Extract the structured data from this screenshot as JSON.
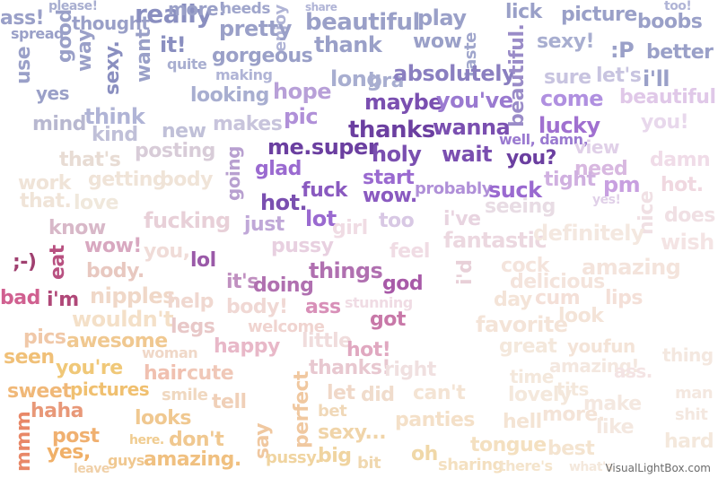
{
  "cloud": {
    "colors": {
      "top": "#8e94bd",
      "middle": "#8a50c0",
      "light": "#f2d9d2",
      "bottom": "#f0c060",
      "dark_purple": "#6b3fa0",
      "pink": "#d89ac8"
    },
    "words": [
      {
        "text": "ass!",
        "color": "#9aa0c8"
      },
      {
        "text": "please!",
        "color": "#a8aed0"
      },
      {
        "text": "thought",
        "color": "#9aa0c8"
      },
      {
        "text": "really",
        "color": "#8a8fc0"
      },
      {
        "text": "more!",
        "color": "#9aa0c8"
      },
      {
        "text": "needs",
        "color": "#a0a6cc"
      },
      {
        "text": "share",
        "color": "#b0b4d6"
      },
      {
        "text": "beautiful",
        "color": "#9aa0c8"
      },
      {
        "text": "play",
        "color": "#9aa0c8"
      },
      {
        "text": "lick",
        "color": "#9aa0c8"
      },
      {
        "text": "picture",
        "color": "#9aa0c8"
      },
      {
        "text": "boobs",
        "color": "#9aa0c8"
      },
      {
        "text": "too!",
        "color": "#b0b4d6"
      },
      {
        "text": "spread",
        "color": "#9aa0c8"
      },
      {
        "text": "good",
        "color": "#9aa0c8"
      },
      {
        "text": "way",
        "color": "#9aa0c8"
      },
      {
        "text": "sexy.",
        "color": "#8a8fc0"
      },
      {
        "text": "want",
        "color": "#9aa0c8"
      },
      {
        "text": "it!",
        "color": "#8a8fc0"
      },
      {
        "text": "gorgeous",
        "color": "#9aa0c8"
      },
      {
        "text": "enjoy",
        "color": "#b0b4d6"
      },
      {
        "text": "thank",
        "color": "#9aa0c8"
      },
      {
        "text": "wow",
        "color": "#9aa0c8"
      },
      {
        "text": "taste",
        "color": "#a0a6cc"
      },
      {
        "text": "sexy!",
        "color": "#a8aed0"
      },
      {
        "text": ":P",
        "color": "#9aa0c8"
      },
      {
        "text": "better",
        "color": "#9aa0c8"
      },
      {
        "text": "use",
        "color": "#9aa0c8"
      },
      {
        "text": "pretty",
        "color": "#9aa0c8"
      },
      {
        "text": "quite",
        "color": "#a8aed0"
      },
      {
        "text": "long",
        "color": "#a8aed0"
      },
      {
        "text": "bra",
        "color": "#a8aed0"
      },
      {
        "text": "absolutely",
        "color": "#8a7fc0"
      },
      {
        "text": "beautiful.",
        "color": "#9a8cc8"
      },
      {
        "text": "sure",
        "color": "#c8c4e0"
      },
      {
        "text": "let's",
        "color": "#c8c4e0"
      },
      {
        "text": "i'll",
        "color": "#9aa0c8"
      },
      {
        "text": "yes",
        "color": "#9aa0c8"
      },
      {
        "text": "making",
        "color": "#b0b4d6"
      },
      {
        "text": "looking",
        "color": "#a8aed0"
      },
      {
        "text": "hope",
        "color": "#b8a0d8"
      },
      {
        "text": "maybe",
        "color": "#7a4fb0"
      },
      {
        "text": "you've",
        "color": "#9a7ad0"
      },
      {
        "text": "come",
        "color": "#b090e0"
      },
      {
        "text": "beautiful!",
        "color": "#e0c8e8"
      },
      {
        "text": "think",
        "color": "#b0b4d6"
      },
      {
        "text": "mind",
        "color": "#b8b8d0"
      },
      {
        "text": "kind",
        "color": "#c0c0d8"
      },
      {
        "text": "new",
        "color": "#c0c0d8"
      },
      {
        "text": "makes",
        "color": "#c8c4dc"
      },
      {
        "text": "pic",
        "color": "#b090d8"
      },
      {
        "text": "thanks",
        "color": "#6b3fa0"
      },
      {
        "text": "wanna",
        "color": "#7a4fb0"
      },
      {
        "text": "lucky",
        "color": "#a070d0"
      },
      {
        "text": "you!",
        "color": "#e8d8ec"
      },
      {
        "text": "posting",
        "color": "#d8ccd8"
      },
      {
        "text": "me.super",
        "color": "#6b3fa0"
      },
      {
        "text": "holy",
        "color": "#7a4fb0"
      },
      {
        "text": "wait",
        "color": "#7a4fb0"
      },
      {
        "text": "well, damn,",
        "color": "#9a7ad0"
      },
      {
        "text": "view",
        "color": "#e0d0e8"
      },
      {
        "text": "glad",
        "color": "#9a6ad0"
      },
      {
        "text": "you?",
        "color": "#6b3fa0"
      },
      {
        "text": "need",
        "color": "#d8b8e0"
      },
      {
        "text": "damn",
        "color": "#f0dce8"
      },
      {
        "text": "that's",
        "color": "#e8dcd4"
      },
      {
        "text": "work",
        "color": "#f0e4d8"
      },
      {
        "text": "getting",
        "color": "#f0e4d8"
      },
      {
        "text": "body",
        "color": "#f0e4d8"
      },
      {
        "text": "going",
        "color": "#b8a0d0"
      },
      {
        "text": "hot.",
        "color": "#7a4fb0"
      },
      {
        "text": "fuck",
        "color": "#8a5ac0"
      },
      {
        "text": "start",
        "color": "#9a6ad0"
      },
      {
        "text": "wow.",
        "color": "#8a5ac0"
      },
      {
        "text": "probably",
        "color": "#b090d8"
      },
      {
        "text": "suck",
        "color": "#9a6ad0"
      },
      {
        "text": "tight",
        "color": "#d0b0e0"
      },
      {
        "text": "pm",
        "color": "#c8a0e0"
      },
      {
        "text": "hot.",
        "color": "#f0d8e0"
      },
      {
        "text": "that.",
        "color": "#f0e4d8"
      },
      {
        "text": "love",
        "color": "#f0e8dc"
      },
      {
        "text": "lot",
        "color": "#9a6ad0"
      },
      {
        "text": "just",
        "color": "#c0a8d8"
      },
      {
        "text": "too",
        "color": "#d8c8e4"
      },
      {
        "text": "i've",
        "color": "#e8d4e0"
      },
      {
        "text": "seeing",
        "color": "#e8dce4"
      },
      {
        "text": "yes!",
        "color": "#e0d0e8"
      },
      {
        "text": "nice",
        "color": "#f0e0e4"
      },
      {
        "text": "does",
        "color": "#f0e0e4"
      },
      {
        "text": "know",
        "color": "#d8b8c8"
      },
      {
        "text": "fucking",
        "color": "#e8d0d8"
      },
      {
        "text": "girl",
        "color": "#f0dce4"
      },
      {
        "text": "fantastic",
        "color": "#ecd8e0"
      },
      {
        "text": "definitely",
        "color": "#f4e8e0"
      },
      {
        "text": "wish",
        "color": "#f4e4e4"
      },
      {
        "text": "wow!",
        "color": "#d8a8c0"
      },
      {
        "text": "pussy",
        "color": "#e8d0e0"
      },
      {
        "text": "feel",
        "color": "#f0dce4"
      },
      {
        "text": "eat",
        "color": "#b85080"
      },
      {
        "text": ";-)",
        "color": "#a04070"
      },
      {
        "text": "you,",
        "color": "#f0dcd8"
      },
      {
        "text": "lol",
        "color": "#9a5aa8"
      },
      {
        "text": "things",
        "color": "#b070b0"
      },
      {
        "text": "i'd",
        "color": "#e8d0d8"
      },
      {
        "text": "cock",
        "color": "#f4e4dc"
      },
      {
        "text": "amazing",
        "color": "#f4e4dc"
      },
      {
        "text": "body.",
        "color": "#e8c8c0"
      },
      {
        "text": "it's",
        "color": "#c090c0"
      },
      {
        "text": "doing",
        "color": "#b070b0"
      },
      {
        "text": "god",
        "color": "#a85aa8"
      },
      {
        "text": "delicious",
        "color": "#f4e4dc"
      },
      {
        "text": "bad",
        "color": "#d06090"
      },
      {
        "text": "i'm",
        "color": "#b04878"
      },
      {
        "text": "nipples",
        "color": "#f0d8c8"
      },
      {
        "text": "help",
        "color": "#f0d8d0"
      },
      {
        "text": "body!",
        "color": "#f0d8d4"
      },
      {
        "text": "ass",
        "color": "#d890b8"
      },
      {
        "text": "stunning",
        "color": "#f0dce4"
      },
      {
        "text": "day",
        "color": "#f4e4d8"
      },
      {
        "text": "cum",
        "color": "#f4e0d8"
      },
      {
        "text": "lips",
        "color": "#f4e0d8"
      },
      {
        "text": "wouldn't",
        "color": "#f4e0c8"
      },
      {
        "text": "legs",
        "color": "#e8c8c8"
      },
      {
        "text": "welcome",
        "color": "#f0d4d0"
      },
      {
        "text": "got",
        "color": "#c878a8"
      },
      {
        "text": "favorite",
        "color": "#f4e4d8"
      },
      {
        "text": "look",
        "color": "#f4e4d8"
      },
      {
        "text": "pics",
        "color": "#f0c8a8"
      },
      {
        "text": "awesome",
        "color": "#f0c890"
      },
      {
        "text": "happy",
        "color": "#e8b8c8"
      },
      {
        "text": "little",
        "color": "#f0dcdc"
      },
      {
        "text": "hot!",
        "color": "#e0a8c0"
      },
      {
        "text": "great",
        "color": "#f4e8dc"
      },
      {
        "text": "you.",
        "color": "#f4e4d8"
      },
      {
        "text": "fun",
        "color": "#f4e4d8"
      },
      {
        "text": "thing",
        "color": "#f4e8e0"
      },
      {
        "text": "seen",
        "color": "#f0c078"
      },
      {
        "text": "you're",
        "color": "#f0c878"
      },
      {
        "text": "woman",
        "color": "#f0d8c8"
      },
      {
        "text": "hair",
        "color": "#f0c0b0"
      },
      {
        "text": "cute",
        "color": "#f0c8b8"
      },
      {
        "text": "thanks!",
        "color": "#e8c8d0"
      },
      {
        "text": "right",
        "color": "#f0e0e0"
      },
      {
        "text": "amazing!",
        "color": "#f4e8e0"
      },
      {
        "text": "ass.",
        "color": "#f4e4e4"
      },
      {
        "text": "sweet",
        "color": "#f0b878"
      },
      {
        "text": "pictures",
        "color": "#f0c070"
      },
      {
        "text": "smile",
        "color": "#f0d8c0"
      },
      {
        "text": "tell",
        "color": "#f0d0b8"
      },
      {
        "text": "let",
        "color": "#f0d8c8"
      },
      {
        "text": "did",
        "color": "#f0dccc"
      },
      {
        "text": "can't",
        "color": "#f4e4d4"
      },
      {
        "text": "lovely",
        "color": "#f4e8dc"
      },
      {
        "text": "time",
        "color": "#f4e8dc"
      },
      {
        "text": "tits",
        "color": "#f4e8dc"
      },
      {
        "text": "make",
        "color": "#f4e8e0"
      },
      {
        "text": "man",
        "color": "#f4e8e0"
      },
      {
        "text": "haha",
        "color": "#e89878"
      },
      {
        "text": "looks",
        "color": "#f0c890"
      },
      {
        "text": "perfect",
        "color": "#f0c8a0"
      },
      {
        "text": "bet",
        "color": "#f0d8b8"
      },
      {
        "text": "panties",
        "color": "#f4e0c8"
      },
      {
        "text": "hell",
        "color": "#f4e4d4"
      },
      {
        "text": "more.",
        "color": "#f4e4d8"
      },
      {
        "text": "like",
        "color": "#f4e8e0"
      },
      {
        "text": "shit",
        "color": "#f4e8e0"
      },
      {
        "text": "mmm",
        "color": "#e88868"
      },
      {
        "text": "post",
        "color": "#f0b070"
      },
      {
        "text": "don't",
        "color": "#f0c890"
      },
      {
        "text": "sexy...",
        "color": "#f0d4a8"
      },
      {
        "text": "tongue",
        "color": "#f4e0c0"
      },
      {
        "text": "best",
        "color": "#f4e4d0"
      },
      {
        "text": "hard",
        "color": "#f4e8dc"
      },
      {
        "text": "yes,",
        "color": "#f0b068"
      },
      {
        "text": "amazing.",
        "color": "#f0c080"
      },
      {
        "text": "say",
        "color": "#f0c8a0"
      },
      {
        "text": "big",
        "color": "#f0d4a0"
      },
      {
        "text": "oh",
        "color": "#f0d8a8"
      },
      {
        "text": "sharing",
        "color": "#f4e0c0"
      },
      {
        "text": "there's",
        "color": "#f4e4cc"
      },
      {
        "text": "pussy.",
        "color": "#f0d4a0"
      },
      {
        "text": "bit",
        "color": "#f0d8b0"
      },
      {
        "text": "here.",
        "color": "#f0cc90"
      },
      {
        "text": "guys",
        "color": "#f0c890"
      },
      {
        "text": "leave",
        "color": "#f0d0a8"
      },
      {
        "text": "what's",
        "color": "#f4e8dc"
      },
      {
        "text": "VisualLightBox.com",
        "color": "#6b6b6b"
      }
    ]
  }
}
